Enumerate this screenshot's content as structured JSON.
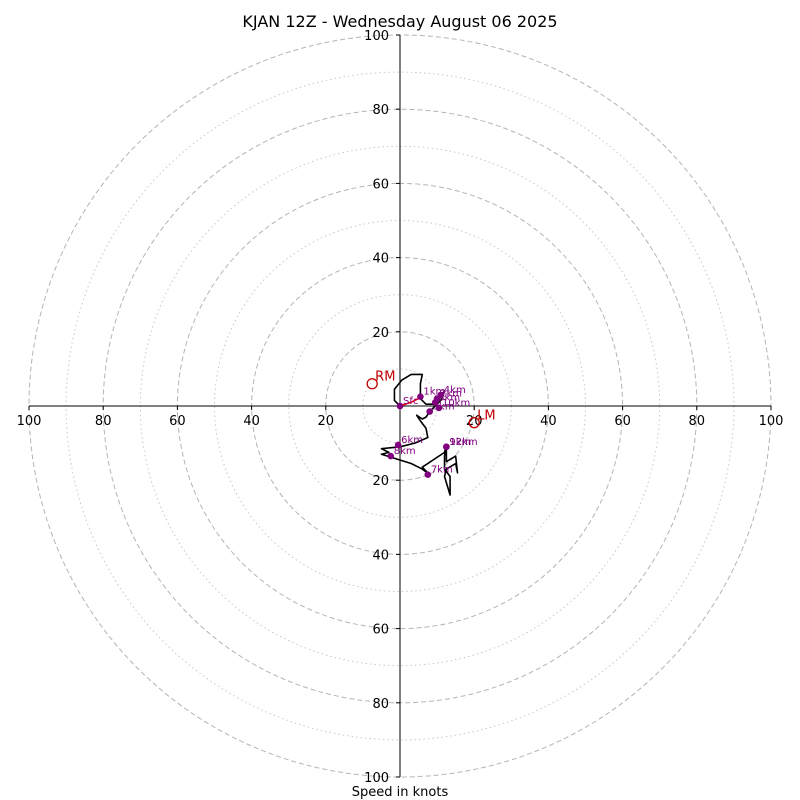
{
  "chart_data": {
    "type": "hodograph",
    "title": "KJAN 12Z - Wednesday August 06 2025",
    "xlabel": "Speed in knots",
    "units": "knots",
    "max_radius": 100,
    "rings_major": [
      20,
      40,
      60,
      80,
      100
    ],
    "rings_minor": [
      10,
      30,
      50,
      70,
      90
    ],
    "x_ticks": [
      {
        "label": "100",
        "value": -100
      },
      {
        "label": "80",
        "value": -80
      },
      {
        "label": "60",
        "value": -60
      },
      {
        "label": "40",
        "value": -40
      },
      {
        "label": "20",
        "value": -20
      },
      {
        "label": "20",
        "value": 20
      },
      {
        "label": "40",
        "value": 40
      },
      {
        "label": "60",
        "value": 60
      },
      {
        "label": "80",
        "value": 80
      },
      {
        "label": "100",
        "value": 100
      }
    ],
    "y_ticks": [
      {
        "label": "100",
        "value": 100
      },
      {
        "label": "80",
        "value": 80
      },
      {
        "label": "60",
        "value": 60
      },
      {
        "label": "40",
        "value": 40
      },
      {
        "label": "20",
        "value": 20
      },
      {
        "label": "20",
        "value": -20
      },
      {
        "label": "40",
        "value": -40
      },
      {
        "label": "60",
        "value": -60
      },
      {
        "label": "80",
        "value": -80
      },
      {
        "label": "100",
        "value": -100
      }
    ],
    "trace_color": "#000000",
    "lowlevel_color": "#ff0000",
    "marker_color": "#800080",
    "motion_color": "#c00000",
    "lowlevel_segment": [
      {
        "u": 0,
        "v": 0
      },
      {
        "u": 3,
        "v": 1
      },
      {
        "u": 5,
        "v": 2
      }
    ],
    "trace": [
      {
        "u": 0,
        "v": 0
      },
      {
        "u": -1.5,
        "v": 1.5
      },
      {
        "u": -1.5,
        "v": 4.5
      },
      {
        "u": 0.5,
        "v": 7
      },
      {
        "u": 3,
        "v": 8.5
      },
      {
        "u": 6,
        "v": 8.5
      },
      {
        "u": 5.5,
        "v": 6
      },
      {
        "u": 5.5,
        "v": 2
      },
      {
        "u": 7,
        "v": 0.5
      },
      {
        "u": 9.5,
        "v": 0.5
      },
      {
        "u": 10.5,
        "v": 2.5
      },
      {
        "u": 12,
        "v": 4
      },
      {
        "u": 11,
        "v": 1.5
      },
      {
        "u": 9,
        "v": -0.5
      },
      {
        "u": 8,
        "v": -1.5
      },
      {
        "u": 7,
        "v": -3
      },
      {
        "u": 6,
        "v": -3.5
      },
      {
        "u": 4.5,
        "v": -2.5
      },
      {
        "u": 5.5,
        "v": -4
      },
      {
        "u": 7,
        "v": -6
      },
      {
        "u": 7.5,
        "v": -8.5
      },
      {
        "u": 4,
        "v": -10
      },
      {
        "u": 0,
        "v": -11
      },
      {
        "u": -5,
        "v": -11.5
      },
      {
        "u": -3,
        "v": -12.5
      },
      {
        "u": -5,
        "v": -13
      },
      {
        "u": 3,
        "v": -15.5
      },
      {
        "u": 6,
        "v": -17
      },
      {
        "u": 8,
        "v": -18.5
      },
      {
        "u": 6,
        "v": -16.5
      },
      {
        "u": 12,
        "v": -12.5
      },
      {
        "u": 12.5,
        "v": -10.5
      },
      {
        "u": 12,
        "v": -13.5
      },
      {
        "u": 12,
        "v": -17
      },
      {
        "u": 13.5,
        "v": -19
      },
      {
        "u": 13.5,
        "v": -24
      },
      {
        "u": 12,
        "v": -19
      },
      {
        "u": 12.5,
        "v": -17
      },
      {
        "u": 15,
        "v": -15.5
      },
      {
        "u": 15.5,
        "v": -18
      },
      {
        "u": 15,
        "v": -13.5
      },
      {
        "u": 12.5,
        "v": -15
      },
      {
        "u": 12.5,
        "v": -11
      }
    ],
    "height_markers": [
      {
        "label": "Sfc",
        "u": 0,
        "v": 0
      },
      {
        "label": "1km",
        "u": 5.5,
        "v": 2.5
      },
      {
        "label": "2km",
        "u": 10,
        "v": 2
      },
      {
        "label": "3km",
        "u": 9.5,
        "v": 1
      },
      {
        "label": "4km",
        "u": 11,
        "v": 3
      },
      {
        "label": "5km",
        "u": 8,
        "v": -1.5
      },
      {
        "label": "6km",
        "u": -0.5,
        "v": -10.5
      },
      {
        "label": "7km",
        "u": 7.5,
        "v": -18.5
      },
      {
        "label": "8km",
        "u": -2.5,
        "v": -13.5
      },
      {
        "label": "9km",
        "u": 12.5,
        "v": -11
      },
      {
        "label": "10km",
        "u": 10.5,
        "v": -0.5
      },
      {
        "label": "12km",
        "u": 12.5,
        "v": -11
      }
    ],
    "storm_motions": [
      {
        "label": "RM",
        "u": -7.5,
        "v": 6
      },
      {
        "label": "LM",
        "u": 20,
        "v": -4.5
      }
    ]
  }
}
